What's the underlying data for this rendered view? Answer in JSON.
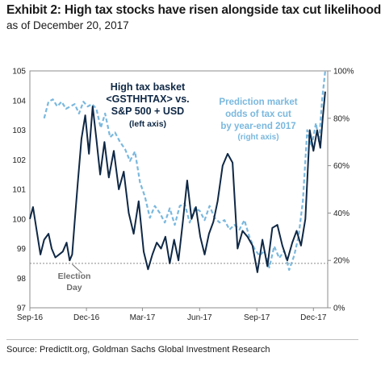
{
  "exhibit": {
    "title": "Exhibit 2: High tax stocks have risen alongside tax cut likelihood",
    "subtitle": "as of December 20, 2017",
    "source": "Source: PredictIt.org, Goldman Sachs Global Investment Research"
  },
  "chart_data": {
    "type": "line",
    "x_labels": [
      "Sep-16",
      "Dec-16",
      "Mar-17",
      "Jun-17",
      "Sep-17",
      "Dec-17"
    ],
    "y_left": {
      "ticks": [
        "105",
        "104",
        "103",
        "102",
        "101",
        "100",
        "99",
        "98",
        "97"
      ],
      "min": 97,
      "max": 105
    },
    "y_right": {
      "ticks": [
        "100%",
        "80%",
        "60%",
        "40%",
        "20%",
        "0%"
      ],
      "min": 0,
      "max": 100
    },
    "grid": false,
    "reference_line": {
      "axis": "left",
      "value": 98.5,
      "label_lines": [
        "Election",
        "Day"
      ]
    },
    "series": [
      {
        "label_lines": [
          "High tax basket",
          "<GSTHHTAX> vs.",
          "S&P 500 + USD",
          "(left axis)"
        ],
        "axis": "left",
        "color": "#0f2845",
        "style": "solid",
        "x": [
          "2016-09-01",
          "2016-09-06",
          "2016-09-12",
          "2016-09-18",
          "2016-09-24",
          "2016-10-01",
          "2016-10-06",
          "2016-10-12",
          "2016-10-18",
          "2016-10-24",
          "2016-10-30",
          "2016-11-04",
          "2016-11-08",
          "2016-11-12",
          "2016-11-17",
          "2016-11-23",
          "2016-11-29",
          "2016-12-05",
          "2016-12-11",
          "2016-12-17",
          "2016-12-23",
          "2016-12-30",
          "2017-01-06",
          "2017-01-14",
          "2017-01-22",
          "2017-01-30",
          "2017-02-07",
          "2017-02-15",
          "2017-02-23",
          "2017-03-03",
          "2017-03-10",
          "2017-03-17",
          "2017-03-24",
          "2017-03-31",
          "2017-04-07",
          "2017-04-14",
          "2017-04-21",
          "2017-04-28",
          "2017-05-05",
          "2017-05-12",
          "2017-05-19",
          "2017-05-26",
          "2017-06-02",
          "2017-06-09",
          "2017-06-16",
          "2017-06-23",
          "2017-06-30",
          "2017-07-08",
          "2017-07-16",
          "2017-07-24",
          "2017-08-01",
          "2017-08-09",
          "2017-08-17",
          "2017-08-25",
          "2017-09-02",
          "2017-09-10",
          "2017-09-18",
          "2017-09-26",
          "2017-10-04",
          "2017-10-12",
          "2017-10-20",
          "2017-10-28",
          "2017-11-04",
          "2017-11-11",
          "2017-11-18",
          "2017-11-25",
          "2017-12-01",
          "2017-12-07",
          "2017-12-12",
          "2017-12-16",
          "2017-12-20"
        ],
        "values": [
          100.0,
          100.4,
          99.6,
          98.8,
          99.3,
          99.5,
          99.0,
          98.7,
          98.8,
          98.9,
          99.2,
          98.6,
          98.8,
          99.9,
          101.2,
          102.7,
          103.5,
          102.2,
          103.8,
          102.7,
          101.5,
          102.6,
          101.4,
          102.3,
          101.0,
          101.6,
          100.2,
          99.5,
          100.6,
          98.9,
          98.3,
          98.8,
          99.2,
          99.0,
          99.4,
          98.5,
          99.3,
          98.6,
          99.9,
          101.3,
          100.0,
          100.4,
          99.4,
          98.8,
          99.5,
          99.9,
          100.6,
          101.8,
          102.2,
          101.9,
          99.0,
          99.6,
          99.4,
          99.1,
          98.2,
          99.3,
          98.4,
          99.7,
          99.8,
          99.1,
          98.6,
          99.2,
          99.6,
          99.1,
          100.0,
          103.0,
          102.3,
          103.0,
          102.4,
          103.4,
          104.3
        ]
      },
      {
        "label_lines": [
          "Prediction market",
          "odds of tax cut",
          "by year-end 2017",
          "(right axis)"
        ],
        "axis": "right",
        "color": "#7ab8de",
        "style": "dashed",
        "x": [
          "2016-09-24",
          "2016-10-01",
          "2016-10-08",
          "2016-10-15",
          "2016-10-22",
          "2016-10-29",
          "2016-11-05",
          "2016-11-12",
          "2016-11-19",
          "2016-11-26",
          "2016-12-03",
          "2016-12-10",
          "2016-12-17",
          "2016-12-24",
          "2016-12-31",
          "2017-01-08",
          "2017-01-16",
          "2017-01-24",
          "2017-02-01",
          "2017-02-09",
          "2017-02-17",
          "2017-02-25",
          "2017-03-05",
          "2017-03-13",
          "2017-03-21",
          "2017-03-29",
          "2017-04-06",
          "2017-04-14",
          "2017-04-22",
          "2017-04-30",
          "2017-05-08",
          "2017-05-16",
          "2017-05-24",
          "2017-06-01",
          "2017-06-09",
          "2017-06-17",
          "2017-06-25",
          "2017-07-03",
          "2017-07-11",
          "2017-07-19",
          "2017-07-27",
          "2017-08-04",
          "2017-08-12",
          "2017-08-20",
          "2017-08-28",
          "2017-09-05",
          "2017-09-13",
          "2017-09-21",
          "2017-09-29",
          "2017-10-07",
          "2017-10-15",
          "2017-10-23",
          "2017-10-31",
          "2017-11-07",
          "2017-11-14",
          "2017-11-21",
          "2017-11-28",
          "2017-12-05",
          "2017-12-10",
          "2017-12-15",
          "2017-12-20"
        ],
        "values": [
          80,
          87,
          88,
          85,
          87,
          84,
          85,
          86,
          82,
          87,
          85,
          86,
          84,
          76,
          82,
          72,
          74,
          70,
          67,
          62,
          66,
          53,
          47,
          38,
          43,
          40,
          36,
          42,
          35,
          43,
          44,
          36,
          42,
          41,
          37,
          43,
          38,
          36,
          37,
          33,
          35,
          33,
          37,
          30,
          25,
          22,
          24,
          17,
          26,
          21,
          24,
          16,
          22,
          30,
          45,
          75,
          68,
          78,
          70,
          88,
          100
        ]
      }
    ]
  }
}
